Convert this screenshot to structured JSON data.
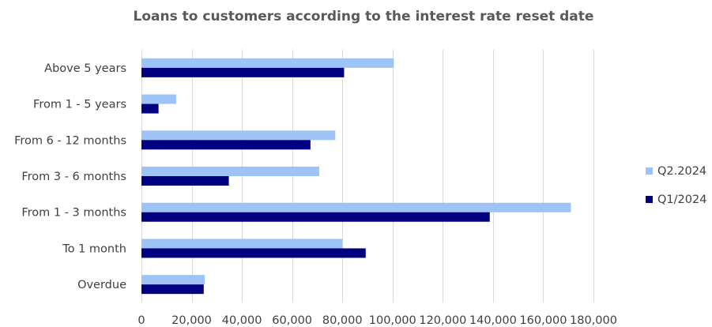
{
  "chart_data": {
    "type": "bar",
    "orientation": "horizontal",
    "title": "Loans to customers according to the interest rate reset date",
    "categories": [
      "Above 5 years",
      "From 1 - 5 years",
      "From 6 - 12 months",
      "From 3 - 6 months",
      "From 1 - 3 months",
      "To 1 month",
      "Overdue"
    ],
    "series": [
      {
        "name": "Q2.2024",
        "color": "#9dc3f7",
        "values": [
          100500,
          13800,
          77200,
          70800,
          171000,
          80000,
          25200
        ]
      },
      {
        "name": "Q1/2024",
        "color": "#000080",
        "values": [
          80700,
          6800,
          67300,
          34800,
          138700,
          89300,
          24800
        ]
      }
    ],
    "xlim": [
      0,
      180000
    ],
    "xticks": [
      0,
      20000,
      40000,
      60000,
      80000,
      100000,
      120000,
      140000,
      160000,
      180000
    ],
    "xtick_labels": [
      "0",
      "20,000",
      "40,000",
      "60,000",
      "80,000",
      "100,000",
      "120,000",
      "140,000",
      "160,000",
      "180,000"
    ],
    "grid": "vertical",
    "legend_position": "right"
  }
}
